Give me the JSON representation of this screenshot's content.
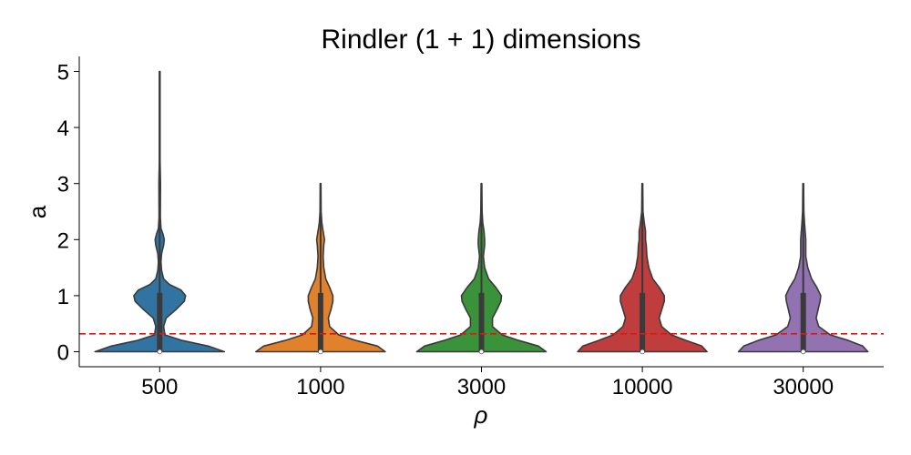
{
  "chart_data": {
    "type": "violin",
    "title": "Rindler (1 + 1) dimensions",
    "xlabel": "ρ",
    "ylabel": "a",
    "categories": [
      "500",
      "1000",
      "3000",
      "10000",
      "30000"
    ],
    "yticks": [
      "0",
      "1",
      "2",
      "3",
      "4",
      "5"
    ],
    "ylim": [
      -0.25,
      5.2
    ],
    "grid": false,
    "reference_line": {
      "y": 0.32,
      "style": "dashed",
      "color": "#e8140c"
    },
    "colors": [
      "#3274a1",
      "#e1812c",
      "#3a923a",
      "#c03d3e",
      "#9372b2"
    ],
    "violins": [
      {
        "category": "500",
        "min": 0,
        "max": 5,
        "q1": 0,
        "median": 0,
        "q3": 1.05,
        "profile": [
          [
            0,
            1.0
          ],
          [
            0.1,
            0.75
          ],
          [
            0.2,
            0.35
          ],
          [
            0.3,
            0.08
          ],
          [
            0.45,
            0.06
          ],
          [
            0.6,
            0.1
          ],
          [
            0.75,
            0.25
          ],
          [
            0.9,
            0.38
          ],
          [
            1.0,
            0.4
          ],
          [
            1.1,
            0.33
          ],
          [
            1.2,
            0.15
          ],
          [
            1.3,
            0.06
          ],
          [
            1.45,
            0.03
          ],
          [
            1.6,
            0.02
          ],
          [
            1.75,
            0.03
          ],
          [
            1.9,
            0.06
          ],
          [
            2.0,
            0.07
          ],
          [
            2.1,
            0.05
          ],
          [
            2.2,
            0.02
          ],
          [
            2.4,
            0.01
          ],
          [
            3.0,
            0.012
          ],
          [
            3.4,
            0.005
          ],
          [
            4.0,
            0.005
          ],
          [
            5.0,
            0.005
          ]
        ]
      },
      {
        "category": "1000",
        "min": 0,
        "max": 3,
        "q1": 0,
        "median": 0,
        "q3": 1.05,
        "profile": [
          [
            0,
            1.0
          ],
          [
            0.1,
            0.88
          ],
          [
            0.2,
            0.55
          ],
          [
            0.3,
            0.28
          ],
          [
            0.45,
            0.14
          ],
          [
            0.6,
            0.12
          ],
          [
            0.75,
            0.16
          ],
          [
            0.9,
            0.19
          ],
          [
            1.0,
            0.19
          ],
          [
            1.15,
            0.14
          ],
          [
            1.3,
            0.08
          ],
          [
            1.5,
            0.05
          ],
          [
            1.7,
            0.04
          ],
          [
            1.9,
            0.05
          ],
          [
            2.0,
            0.06
          ],
          [
            2.15,
            0.04
          ],
          [
            2.3,
            0.02
          ],
          [
            2.5,
            0.008
          ],
          [
            3.0,
            0.005
          ]
        ]
      },
      {
        "category": "3000",
        "min": 0,
        "max": 3,
        "q1": 0,
        "median": 0,
        "q3": 1.05,
        "profile": [
          [
            0,
            1.0
          ],
          [
            0.1,
            0.88
          ],
          [
            0.2,
            0.58
          ],
          [
            0.3,
            0.32
          ],
          [
            0.45,
            0.17
          ],
          [
            0.6,
            0.17
          ],
          [
            0.75,
            0.24
          ],
          [
            0.9,
            0.3
          ],
          [
            1.0,
            0.31
          ],
          [
            1.15,
            0.22
          ],
          [
            1.3,
            0.11
          ],
          [
            1.5,
            0.05
          ],
          [
            1.7,
            0.03
          ],
          [
            1.9,
            0.05
          ],
          [
            2.0,
            0.05
          ],
          [
            2.15,
            0.04
          ],
          [
            2.3,
            0.02
          ],
          [
            2.5,
            0.01
          ],
          [
            3.0,
            0.006
          ]
        ]
      },
      {
        "category": "10000",
        "min": 0,
        "max": 3,
        "q1": 0,
        "median": 0,
        "q3": 1.05,
        "profile": [
          [
            0,
            1.0
          ],
          [
            0.1,
            0.92
          ],
          [
            0.2,
            0.68
          ],
          [
            0.3,
            0.45
          ],
          [
            0.45,
            0.3
          ],
          [
            0.6,
            0.26
          ],
          [
            0.75,
            0.3
          ],
          [
            0.9,
            0.34
          ],
          [
            1.0,
            0.34
          ],
          [
            1.15,
            0.26
          ],
          [
            1.3,
            0.16
          ],
          [
            1.5,
            0.1
          ],
          [
            1.7,
            0.07
          ],
          [
            1.9,
            0.06
          ],
          [
            2.0,
            0.05
          ],
          [
            2.15,
            0.05
          ],
          [
            2.3,
            0.03
          ],
          [
            2.5,
            0.01
          ],
          [
            3.0,
            0.005
          ]
        ]
      },
      {
        "category": "30000",
        "min": 0,
        "max": 3,
        "q1": 0,
        "median": 0,
        "q3": 1.05,
        "profile": [
          [
            0,
            1.0
          ],
          [
            0.1,
            0.92
          ],
          [
            0.2,
            0.7
          ],
          [
            0.3,
            0.42
          ],
          [
            0.45,
            0.24
          ],
          [
            0.6,
            0.2
          ],
          [
            0.75,
            0.23
          ],
          [
            0.9,
            0.26
          ],
          [
            1.0,
            0.27
          ],
          [
            1.15,
            0.21
          ],
          [
            1.3,
            0.13
          ],
          [
            1.5,
            0.07
          ],
          [
            1.7,
            0.04
          ],
          [
            1.9,
            0.04
          ],
          [
            2.0,
            0.04
          ],
          [
            2.15,
            0.03
          ],
          [
            2.3,
            0.02
          ],
          [
            2.5,
            0.01
          ],
          [
            3.0,
            0.005
          ]
        ]
      }
    ]
  }
}
